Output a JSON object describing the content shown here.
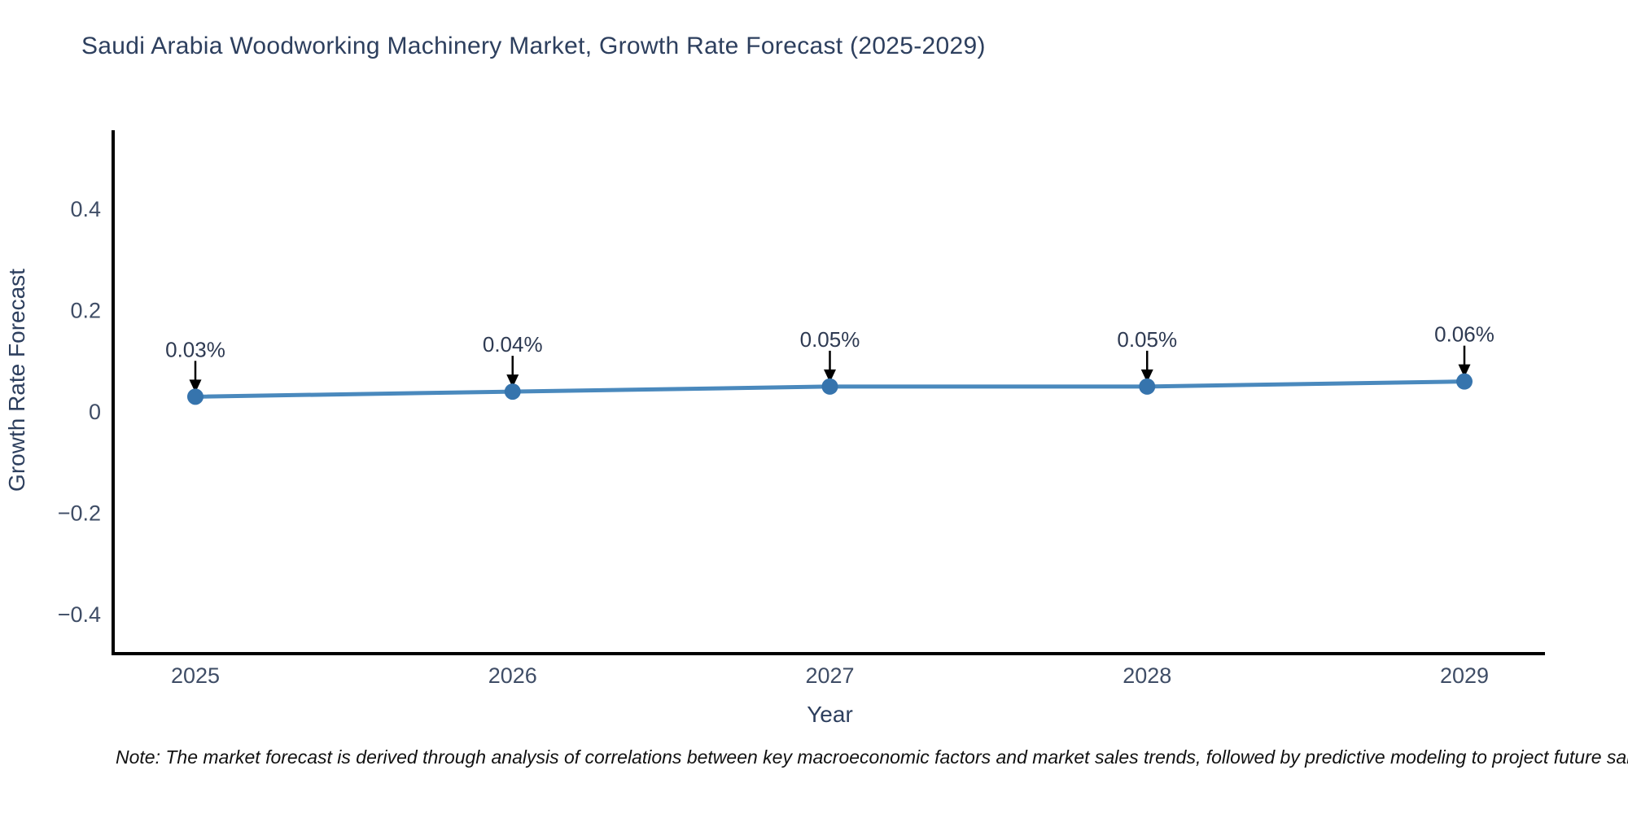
{
  "title": "Saudi Arabia Woodworking Machinery Market, Growth Rate Forecast (2025-2029)",
  "note": "Note: The market forecast is derived through analysis of correlations between key macroeconomic factors and market sales trends, followed by predictive modeling to project future sales",
  "colors": {
    "line": "#4a89bd",
    "marker": "#3674ad",
    "axis": "#000000",
    "title_text": "#2d3f5e",
    "tick_text": "#3f4d66",
    "annotation_text": "#2e3a52",
    "annotation_arrow": "#000000",
    "background": "#ffffff"
  },
  "chart_data": {
    "type": "line",
    "title": "Saudi Arabia Woodworking Machinery Market, Growth Rate Forecast (2025-2029)",
    "xlabel": "Year",
    "ylabel": "Growth Rate Forecast",
    "x": [
      2025,
      2026,
      2027,
      2028,
      2029
    ],
    "categories": [
      "2025",
      "2026",
      "2027",
      "2028",
      "2029"
    ],
    "values": [
      0.03,
      0.04,
      0.05,
      0.05,
      0.06
    ],
    "point_labels": [
      "0.03%",
      "0.04%",
      "0.05%",
      "0.05%",
      "0.06%"
    ],
    "yticks": [
      0.4,
      0.2,
      0,
      -0.2,
      -0.4
    ],
    "ytick_labels": [
      "0.4",
      "0.2",
      "0",
      "−0.2",
      "−0.4"
    ],
    "ylim": [
      -0.475,
      0.555
    ],
    "grid": false,
    "legend": false,
    "marker_style": "circle",
    "annotation_style": "label-with-down-arrow"
  }
}
